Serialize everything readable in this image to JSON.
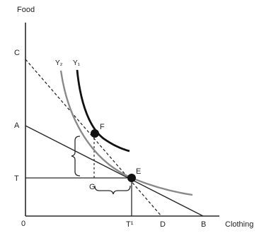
{
  "axes": {
    "y_label": "Food",
    "x_label": "Clothing",
    "origin_label": "0"
  },
  "points": {
    "C": "C",
    "A": "A",
    "T": "T",
    "F": "F",
    "E": "E",
    "G": "G",
    "D": "D",
    "B": "B",
    "T1": "T¹"
  },
  "curves": {
    "y2": "Y₂",
    "y1": "Y₁"
  },
  "colors": {
    "line": "#2a2a2a",
    "curve_light": "#8a8a8a",
    "curve_dark": "#111111",
    "dot": "#111111"
  }
}
